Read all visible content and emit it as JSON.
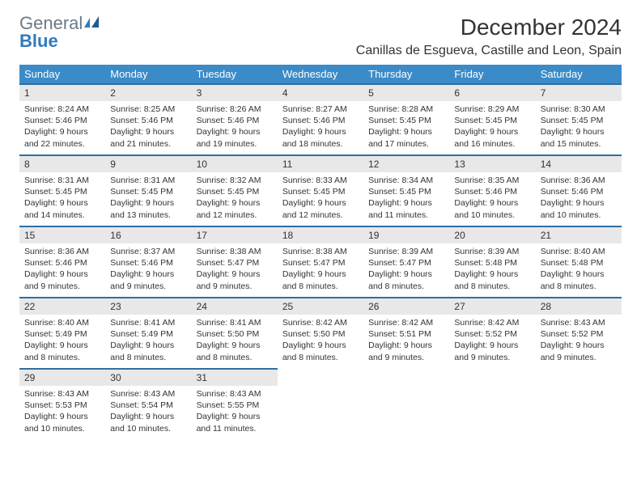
{
  "logo": {
    "text1": "General",
    "text2": "Blue"
  },
  "title": "December 2024",
  "location": "Canillas de Esgueva, Castille and Leon, Spain",
  "colors": {
    "header_bg": "#3b8bc8",
    "header_text": "#ffffff",
    "daynum_bg": "#e8e8e8",
    "daynum_border": "#2e6ea3",
    "body_text": "#333333",
    "logo_gray": "#6b7a85",
    "logo_blue": "#2f7bbf",
    "page_bg": "#ffffff"
  },
  "weekdays": [
    "Sunday",
    "Monday",
    "Tuesday",
    "Wednesday",
    "Thursday",
    "Friday",
    "Saturday"
  ],
  "weeks": [
    [
      {
        "n": "1",
        "sr": "Sunrise: 8:24 AM",
        "ss": "Sunset: 5:46 PM",
        "dl": "Daylight: 9 hours and 22 minutes."
      },
      {
        "n": "2",
        "sr": "Sunrise: 8:25 AM",
        "ss": "Sunset: 5:46 PM",
        "dl": "Daylight: 9 hours and 21 minutes."
      },
      {
        "n": "3",
        "sr": "Sunrise: 8:26 AM",
        "ss": "Sunset: 5:46 PM",
        "dl": "Daylight: 9 hours and 19 minutes."
      },
      {
        "n": "4",
        "sr": "Sunrise: 8:27 AM",
        "ss": "Sunset: 5:46 PM",
        "dl": "Daylight: 9 hours and 18 minutes."
      },
      {
        "n": "5",
        "sr": "Sunrise: 8:28 AM",
        "ss": "Sunset: 5:45 PM",
        "dl": "Daylight: 9 hours and 17 minutes."
      },
      {
        "n": "6",
        "sr": "Sunrise: 8:29 AM",
        "ss": "Sunset: 5:45 PM",
        "dl": "Daylight: 9 hours and 16 minutes."
      },
      {
        "n": "7",
        "sr": "Sunrise: 8:30 AM",
        "ss": "Sunset: 5:45 PM",
        "dl": "Daylight: 9 hours and 15 minutes."
      }
    ],
    [
      {
        "n": "8",
        "sr": "Sunrise: 8:31 AM",
        "ss": "Sunset: 5:45 PM",
        "dl": "Daylight: 9 hours and 14 minutes."
      },
      {
        "n": "9",
        "sr": "Sunrise: 8:31 AM",
        "ss": "Sunset: 5:45 PM",
        "dl": "Daylight: 9 hours and 13 minutes."
      },
      {
        "n": "10",
        "sr": "Sunrise: 8:32 AM",
        "ss": "Sunset: 5:45 PM",
        "dl": "Daylight: 9 hours and 12 minutes."
      },
      {
        "n": "11",
        "sr": "Sunrise: 8:33 AM",
        "ss": "Sunset: 5:45 PM",
        "dl": "Daylight: 9 hours and 12 minutes."
      },
      {
        "n": "12",
        "sr": "Sunrise: 8:34 AM",
        "ss": "Sunset: 5:45 PM",
        "dl": "Daylight: 9 hours and 11 minutes."
      },
      {
        "n": "13",
        "sr": "Sunrise: 8:35 AM",
        "ss": "Sunset: 5:46 PM",
        "dl": "Daylight: 9 hours and 10 minutes."
      },
      {
        "n": "14",
        "sr": "Sunrise: 8:36 AM",
        "ss": "Sunset: 5:46 PM",
        "dl": "Daylight: 9 hours and 10 minutes."
      }
    ],
    [
      {
        "n": "15",
        "sr": "Sunrise: 8:36 AM",
        "ss": "Sunset: 5:46 PM",
        "dl": "Daylight: 9 hours and 9 minutes."
      },
      {
        "n": "16",
        "sr": "Sunrise: 8:37 AM",
        "ss": "Sunset: 5:46 PM",
        "dl": "Daylight: 9 hours and 9 minutes."
      },
      {
        "n": "17",
        "sr": "Sunrise: 8:38 AM",
        "ss": "Sunset: 5:47 PM",
        "dl": "Daylight: 9 hours and 9 minutes."
      },
      {
        "n": "18",
        "sr": "Sunrise: 8:38 AM",
        "ss": "Sunset: 5:47 PM",
        "dl": "Daylight: 9 hours and 8 minutes."
      },
      {
        "n": "19",
        "sr": "Sunrise: 8:39 AM",
        "ss": "Sunset: 5:47 PM",
        "dl": "Daylight: 9 hours and 8 minutes."
      },
      {
        "n": "20",
        "sr": "Sunrise: 8:39 AM",
        "ss": "Sunset: 5:48 PM",
        "dl": "Daylight: 9 hours and 8 minutes."
      },
      {
        "n": "21",
        "sr": "Sunrise: 8:40 AM",
        "ss": "Sunset: 5:48 PM",
        "dl": "Daylight: 9 hours and 8 minutes."
      }
    ],
    [
      {
        "n": "22",
        "sr": "Sunrise: 8:40 AM",
        "ss": "Sunset: 5:49 PM",
        "dl": "Daylight: 9 hours and 8 minutes."
      },
      {
        "n": "23",
        "sr": "Sunrise: 8:41 AM",
        "ss": "Sunset: 5:49 PM",
        "dl": "Daylight: 9 hours and 8 minutes."
      },
      {
        "n": "24",
        "sr": "Sunrise: 8:41 AM",
        "ss": "Sunset: 5:50 PM",
        "dl": "Daylight: 9 hours and 8 minutes."
      },
      {
        "n": "25",
        "sr": "Sunrise: 8:42 AM",
        "ss": "Sunset: 5:50 PM",
        "dl": "Daylight: 9 hours and 8 minutes."
      },
      {
        "n": "26",
        "sr": "Sunrise: 8:42 AM",
        "ss": "Sunset: 5:51 PM",
        "dl": "Daylight: 9 hours and 9 minutes."
      },
      {
        "n": "27",
        "sr": "Sunrise: 8:42 AM",
        "ss": "Sunset: 5:52 PM",
        "dl": "Daylight: 9 hours and 9 minutes."
      },
      {
        "n": "28",
        "sr": "Sunrise: 8:43 AM",
        "ss": "Sunset: 5:52 PM",
        "dl": "Daylight: 9 hours and 9 minutes."
      }
    ],
    [
      {
        "n": "29",
        "sr": "Sunrise: 8:43 AM",
        "ss": "Sunset: 5:53 PM",
        "dl": "Daylight: 9 hours and 10 minutes."
      },
      {
        "n": "30",
        "sr": "Sunrise: 8:43 AM",
        "ss": "Sunset: 5:54 PM",
        "dl": "Daylight: 9 hours and 10 minutes."
      },
      {
        "n": "31",
        "sr": "Sunrise: 8:43 AM",
        "ss": "Sunset: 5:55 PM",
        "dl": "Daylight: 9 hours and 11 minutes."
      },
      null,
      null,
      null,
      null
    ]
  ]
}
